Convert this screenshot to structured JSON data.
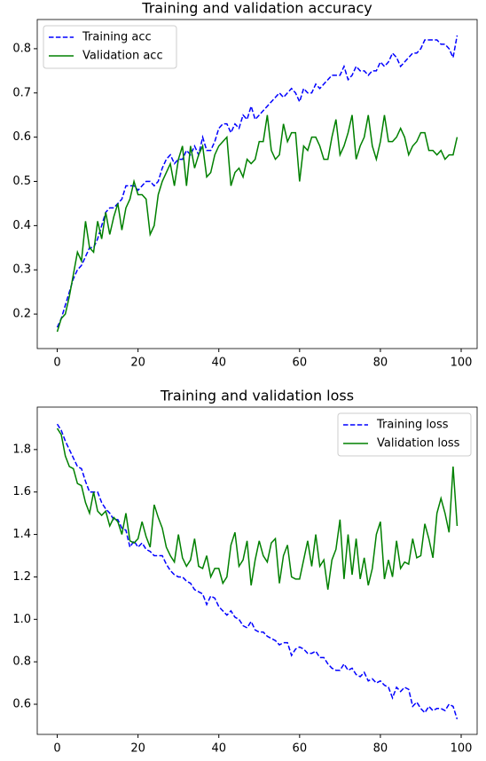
{
  "chart_data": [
    {
      "type": "line",
      "title": "Training and validation accuracy",
      "x": [
        0,
        1,
        2,
        3,
        4,
        5,
        6,
        7,
        8,
        9,
        10,
        11,
        12,
        13,
        14,
        15,
        16,
        17,
        18,
        19,
        20,
        21,
        22,
        23,
        24,
        25,
        26,
        27,
        28,
        29,
        30,
        31,
        32,
        33,
        34,
        35,
        36,
        37,
        38,
        39,
        40,
        41,
        42,
        43,
        44,
        45,
        46,
        47,
        48,
        49,
        50,
        51,
        52,
        53,
        54,
        55,
        56,
        57,
        58,
        59,
        60,
        61,
        62,
        63,
        64,
        65,
        66,
        67,
        68,
        69,
        70,
        71,
        72,
        73,
        74,
        75,
        76,
        77,
        78,
        79,
        80,
        81,
        82,
        83,
        84,
        85,
        86,
        87,
        88,
        89,
        90,
        91,
        92,
        93,
        94,
        95,
        96,
        97,
        98,
        99
      ],
      "series": [
        {
          "name": "Training acc",
          "color": "#0000ff",
          "linestyle": "dashed",
          "values": [
            0.17,
            0.19,
            0.22,
            0.25,
            0.28,
            0.3,
            0.31,
            0.33,
            0.35,
            0.35,
            0.37,
            0.4,
            0.43,
            0.44,
            0.44,
            0.45,
            0.46,
            0.49,
            0.49,
            0.49,
            0.48,
            0.49,
            0.5,
            0.5,
            0.49,
            0.5,
            0.53,
            0.55,
            0.56,
            0.54,
            0.55,
            0.55,
            0.57,
            0.56,
            0.58,
            0.56,
            0.6,
            0.57,
            0.57,
            0.59,
            0.62,
            0.63,
            0.63,
            0.61,
            0.63,
            0.62,
            0.65,
            0.64,
            0.67,
            0.64,
            0.65,
            0.66,
            0.67,
            0.68,
            0.69,
            0.7,
            0.69,
            0.7,
            0.71,
            0.7,
            0.68,
            0.71,
            0.7,
            0.7,
            0.72,
            0.71,
            0.72,
            0.73,
            0.74,
            0.74,
            0.74,
            0.76,
            0.73,
            0.74,
            0.76,
            0.75,
            0.75,
            0.74,
            0.75,
            0.75,
            0.77,
            0.76,
            0.77,
            0.79,
            0.78,
            0.76,
            0.77,
            0.78,
            0.79,
            0.79,
            0.8,
            0.82,
            0.82,
            0.82,
            0.82,
            0.81,
            0.81,
            0.8,
            0.78,
            0.83
          ]
        },
        {
          "name": "Validation acc",
          "color": "#008000",
          "linestyle": "solid",
          "values": [
            0.16,
            0.19,
            0.2,
            0.24,
            0.29,
            0.34,
            0.32,
            0.41,
            0.35,
            0.34,
            0.41,
            0.37,
            0.43,
            0.38,
            0.42,
            0.45,
            0.39,
            0.44,
            0.46,
            0.5,
            0.47,
            0.47,
            0.46,
            0.38,
            0.4,
            0.47,
            0.5,
            0.52,
            0.54,
            0.49,
            0.55,
            0.58,
            0.49,
            0.58,
            0.53,
            0.56,
            0.58,
            0.51,
            0.52,
            0.56,
            0.58,
            0.59,
            0.6,
            0.49,
            0.52,
            0.53,
            0.51,
            0.55,
            0.54,
            0.55,
            0.59,
            0.59,
            0.65,
            0.57,
            0.55,
            0.56,
            0.63,
            0.59,
            0.61,
            0.61,
            0.5,
            0.58,
            0.57,
            0.6,
            0.6,
            0.58,
            0.55,
            0.55,
            0.6,
            0.64,
            0.56,
            0.58,
            0.61,
            0.65,
            0.55,
            0.58,
            0.6,
            0.65,
            0.58,
            0.55,
            0.59,
            0.65,
            0.59,
            0.59,
            0.6,
            0.62,
            0.6,
            0.56,
            0.58,
            0.59,
            0.61,
            0.61,
            0.57,
            0.57,
            0.56,
            0.57,
            0.55,
            0.56,
            0.56,
            0.6
          ]
        }
      ],
      "xlim": [
        -4.95,
        103.95
      ],
      "xticks": [
        0,
        20,
        40,
        60,
        80,
        100
      ],
      "ylim": [
        0.122,
        0.866
      ],
      "yticks": [
        0.2,
        0.3,
        0.4,
        0.5,
        0.6,
        0.7,
        0.8
      ],
      "legend": "upper left"
    },
    {
      "type": "line",
      "title": "Training and validation loss",
      "x": [
        0,
        1,
        2,
        3,
        4,
        5,
        6,
        7,
        8,
        9,
        10,
        11,
        12,
        13,
        14,
        15,
        16,
        17,
        18,
        19,
        20,
        21,
        22,
        23,
        24,
        25,
        26,
        27,
        28,
        29,
        30,
        31,
        32,
        33,
        34,
        35,
        36,
        37,
        38,
        39,
        40,
        41,
        42,
        43,
        44,
        45,
        46,
        47,
        48,
        49,
        50,
        51,
        52,
        53,
        54,
        55,
        56,
        57,
        58,
        59,
        60,
        61,
        62,
        63,
        64,
        65,
        66,
        67,
        68,
        69,
        70,
        71,
        72,
        73,
        74,
        75,
        76,
        77,
        78,
        79,
        80,
        81,
        82,
        83,
        84,
        85,
        86,
        87,
        88,
        89,
        90,
        91,
        92,
        93,
        94,
        95,
        96,
        97,
        98,
        99
      ],
      "series": [
        {
          "name": "Training loss",
          "color": "#0000ff",
          "linestyle": "dashed",
          "values": [
            1.92,
            1.89,
            1.84,
            1.8,
            1.76,
            1.72,
            1.71,
            1.65,
            1.6,
            1.6,
            1.6,
            1.55,
            1.52,
            1.5,
            1.47,
            1.47,
            1.43,
            1.42,
            1.34,
            1.37,
            1.34,
            1.36,
            1.33,
            1.32,
            1.3,
            1.3,
            1.3,
            1.26,
            1.23,
            1.21,
            1.2,
            1.2,
            1.18,
            1.17,
            1.14,
            1.13,
            1.12,
            1.07,
            1.11,
            1.1,
            1.06,
            1.04,
            1.02,
            1.04,
            1.01,
            1.0,
            0.97,
            0.96,
            0.99,
            0.95,
            0.94,
            0.94,
            0.92,
            0.91,
            0.9,
            0.88,
            0.89,
            0.89,
            0.83,
            0.86,
            0.87,
            0.86,
            0.84,
            0.84,
            0.85,
            0.82,
            0.82,
            0.79,
            0.77,
            0.76,
            0.76,
            0.79,
            0.76,
            0.77,
            0.74,
            0.73,
            0.75,
            0.71,
            0.72,
            0.7,
            0.71,
            0.69,
            0.68,
            0.63,
            0.68,
            0.66,
            0.68,
            0.67,
            0.59,
            0.61,
            0.58,
            0.56,
            0.59,
            0.57,
            0.58,
            0.58,
            0.57,
            0.6,
            0.59,
            0.53
          ]
        },
        {
          "name": "Validation loss",
          "color": "#008000",
          "linestyle": "solid",
          "values": [
            1.9,
            1.87,
            1.77,
            1.72,
            1.71,
            1.64,
            1.63,
            1.55,
            1.5,
            1.6,
            1.51,
            1.49,
            1.51,
            1.44,
            1.48,
            1.46,
            1.4,
            1.5,
            1.37,
            1.36,
            1.38,
            1.46,
            1.39,
            1.34,
            1.54,
            1.48,
            1.43,
            1.34,
            1.3,
            1.27,
            1.4,
            1.29,
            1.25,
            1.28,
            1.38,
            1.25,
            1.24,
            1.3,
            1.2,
            1.24,
            1.24,
            1.17,
            1.2,
            1.35,
            1.41,
            1.25,
            1.28,
            1.37,
            1.16,
            1.28,
            1.37,
            1.3,
            1.27,
            1.36,
            1.38,
            1.17,
            1.3,
            1.35,
            1.2,
            1.19,
            1.19,
            1.28,
            1.37,
            1.25,
            1.4,
            1.25,
            1.28,
            1.14,
            1.28,
            1.33,
            1.47,
            1.19,
            1.4,
            1.21,
            1.38,
            1.19,
            1.29,
            1.16,
            1.24,
            1.4,
            1.46,
            1.19,
            1.28,
            1.2,
            1.37,
            1.24,
            1.27,
            1.26,
            1.38,
            1.29,
            1.3,
            1.45,
            1.38,
            1.29,
            1.5,
            1.57,
            1.5,
            1.41,
            1.72,
            1.44
          ]
        }
      ],
      "xlim": [
        -4.95,
        103.95
      ],
      "xticks": [
        0,
        20,
        40,
        60,
        80,
        100
      ],
      "ylim": [
        0.458,
        2.0
      ],
      "yticks": [
        0.6,
        0.8,
        {
          "value": 1,
          "label": "1.0"
        },
        1.2,
        1.4,
        1.6,
        1.8
      ],
      "legend": "upper right"
    }
  ]
}
